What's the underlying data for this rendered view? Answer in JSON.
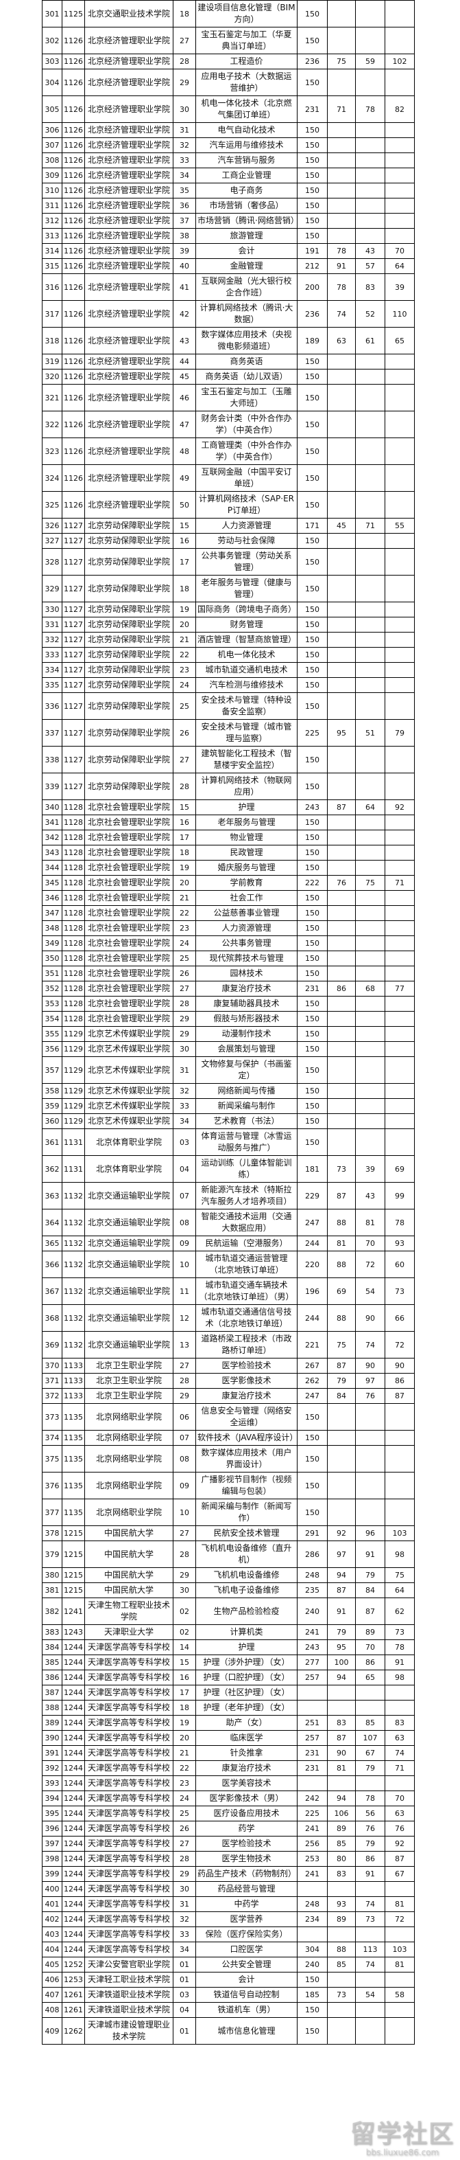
{
  "watermark": {
    "logo_text": "留学社区",
    "url": "bbs.liuxue86.com"
  },
  "table": {
    "rows": [
      [
        "301",
        "1125",
        "北京交通职业技术学院",
        "18",
        "建设项目信息化管理（BIM方向）",
        "150",
        "",
        "",
        ""
      ],
      [
        "302",
        "1126",
        "北京经济管理职业学院",
        "27",
        "宝玉石鉴定与加工（华夏典当订单班）",
        "150",
        "",
        "",
        ""
      ],
      [
        "303",
        "1126",
        "北京经济管理职业学院",
        "28",
        "工程造价",
        "236",
        "75",
        "59",
        "102"
      ],
      [
        "304",
        "1126",
        "北京经济管理职业学院",
        "29",
        "应用电子技术（大数据运营维护）",
        "150",
        "",
        "",
        ""
      ],
      [
        "305",
        "1126",
        "北京经济管理职业学院",
        "30",
        "机电一体化技术（北京燃气集团订单班）",
        "231",
        "71",
        "78",
        "82"
      ],
      [
        "306",
        "1126",
        "北京经济管理职业学院",
        "31",
        "电气自动化技术",
        "150",
        "",
        "",
        ""
      ],
      [
        "307",
        "1126",
        "北京经济管理职业学院",
        "32",
        "汽车运用与维修技术",
        "150",
        "",
        "",
        ""
      ],
      [
        "308",
        "1126",
        "北京经济管理职业学院",
        "33",
        "汽车营销与服务",
        "150",
        "",
        "",
        ""
      ],
      [
        "309",
        "1126",
        "北京经济管理职业学院",
        "34",
        "工商企业管理",
        "150",
        "",
        "",
        ""
      ],
      [
        "310",
        "1126",
        "北京经济管理职业学院",
        "35",
        "电子商务",
        "150",
        "",
        "",
        ""
      ],
      [
        "311",
        "1126",
        "北京经济管理职业学院",
        "36",
        "市场营销（奢侈品）",
        "150",
        "",
        "",
        ""
      ],
      [
        "312",
        "1126",
        "北京经济管理职业学院",
        "37",
        "市场营销（腾讯·网络营销）",
        "150",
        "",
        "",
        ""
      ],
      [
        "313",
        "1126",
        "北京经济管理职业学院",
        "38",
        "旅游管理",
        "150",
        "",
        "",
        ""
      ],
      [
        "314",
        "1126",
        "北京经济管理职业学院",
        "39",
        "会计",
        "191",
        "78",
        "43",
        "70"
      ],
      [
        "315",
        "1126",
        "北京经济管理职业学院",
        "40",
        "金融管理",
        "212",
        "91",
        "57",
        "64"
      ],
      [
        "316",
        "1126",
        "北京经济管理职业学院",
        "41",
        "互联网金融（光大银行校企合作班）",
        "200",
        "78",
        "83",
        "39"
      ],
      [
        "317",
        "1126",
        "北京经济管理职业学院",
        "42",
        "计算机网络技术（腾讯·大数据）",
        "236",
        "74",
        "52",
        "110"
      ],
      [
        "318",
        "1126",
        "北京经济管理职业学院",
        "43",
        "数字媒体应用技术（央视微电影频道班）",
        "189",
        "63",
        "61",
        "65"
      ],
      [
        "319",
        "1126",
        "北京经济管理职业学院",
        "44",
        "商务英语",
        "150",
        "",
        "",
        ""
      ],
      [
        "320",
        "1126",
        "北京经济管理职业学院",
        "45",
        "商务英语（幼儿双语）",
        "150",
        "",
        "",
        ""
      ],
      [
        "321",
        "1126",
        "北京经济管理职业学院",
        "46",
        "宝玉石鉴定与加工（玉雕大师班）",
        "150",
        "",
        "",
        ""
      ],
      [
        "322",
        "1126",
        "北京经济管理职业学院",
        "47",
        "财务会计类（中外合作办学）（中英合作）",
        "150",
        "",
        "",
        ""
      ],
      [
        "323",
        "1126",
        "北京经济管理职业学院",
        "48",
        "工商管理类（中外合作办学）（中英合作）",
        "150",
        "",
        "",
        ""
      ],
      [
        "324",
        "1126",
        "北京经济管理职业学院",
        "49",
        "互联网金融（中国平安订单班）",
        "150",
        "",
        "",
        ""
      ],
      [
        "325",
        "1126",
        "北京经济管理职业学院",
        "50",
        "计算机网络技术（SAP·ERP订单班）",
        "150",
        "",
        "",
        ""
      ],
      [
        "326",
        "1127",
        "北京劳动保障职业学院",
        "15",
        "人力资源管理",
        "171",
        "45",
        "71",
        "55"
      ],
      [
        "327",
        "1127",
        "北京劳动保障职业学院",
        "16",
        "劳动与社会保障",
        "150",
        "",
        "",
        ""
      ],
      [
        "328",
        "1127",
        "北京劳动保障职业学院",
        "17",
        "公共事务管理（劳动关系管理）",
        "150",
        "",
        "",
        ""
      ],
      [
        "329",
        "1127",
        "北京劳动保障职业学院",
        "18",
        "老年服务与管理（健康与管理）",
        "150",
        "",
        "",
        ""
      ],
      [
        "330",
        "1127",
        "北京劳动保障职业学院",
        "19",
        "国际商务（跨境电子商务）",
        "150",
        "",
        "",
        ""
      ],
      [
        "331",
        "1127",
        "北京劳动保障职业学院",
        "20",
        "财务管理",
        "150",
        "",
        "",
        ""
      ],
      [
        "332",
        "1127",
        "北京劳动保障职业学院",
        "21",
        "酒店管理（智慧商旅管理）",
        "150",
        "",
        "",
        ""
      ],
      [
        "333",
        "1127",
        "北京劳动保障职业学院",
        "22",
        "机电一体化技术",
        "150",
        "",
        "",
        ""
      ],
      [
        "334",
        "1127",
        "北京劳动保障职业学院",
        "23",
        "城市轨道交通机电技术",
        "150",
        "",
        "",
        ""
      ],
      [
        "335",
        "1127",
        "北京劳动保障职业学院",
        "24",
        "汽车检测与维修技术",
        "150",
        "",
        "",
        ""
      ],
      [
        "336",
        "1127",
        "北京劳动保障职业学院",
        "25",
        "安全技术与管理（特种设备安全监察）",
        "150",
        "",
        "",
        ""
      ],
      [
        "337",
        "1127",
        "北京劳动保障职业学院",
        "26",
        "安全技术与管理（城市管理与监察）",
        "225",
        "95",
        "51",
        "79"
      ],
      [
        "338",
        "1127",
        "北京劳动保障职业学院",
        "27",
        "建筑智能化工程技术（智慧楼宇安全监控）",
        "150",
        "",
        "",
        ""
      ],
      [
        "339",
        "1127",
        "北京劳动保障职业学院",
        "28",
        "计算机网络技术（物联网应用）",
        "150",
        "",
        "",
        ""
      ],
      [
        "340",
        "1128",
        "北京社会管理职业学院",
        "15",
        "护理",
        "243",
        "87",
        "64",
        "92"
      ],
      [
        "341",
        "1128",
        "北京社会管理职业学院",
        "16",
        "老年服务与管理",
        "150",
        "",
        "",
        ""
      ],
      [
        "342",
        "1128",
        "北京社会管理职业学院",
        "17",
        "物业管理",
        "150",
        "",
        "",
        ""
      ],
      [
        "343",
        "1128",
        "北京社会管理职业学院",
        "18",
        "民政管理",
        "150",
        "",
        "",
        ""
      ],
      [
        "344",
        "1128",
        "北京社会管理职业学院",
        "19",
        "婚庆服务与管理",
        "150",
        "",
        "",
        ""
      ],
      [
        "345",
        "1128",
        "北京社会管理职业学院",
        "20",
        "学前教育",
        "222",
        "76",
        "75",
        "71"
      ],
      [
        "346",
        "1128",
        "北京社会管理职业学院",
        "21",
        "社会工作",
        "150",
        "",
        "",
        ""
      ],
      [
        "347",
        "1128",
        "北京社会管理职业学院",
        "22",
        "公益慈善事业管理",
        "150",
        "",
        "",
        ""
      ],
      [
        "348",
        "1128",
        "北京社会管理职业学院",
        "23",
        "人力资源管理",
        "150",
        "",
        "",
        ""
      ],
      [
        "349",
        "1128",
        "北京社会管理职业学院",
        "24",
        "公共事务管理",
        "150",
        "",
        "",
        ""
      ],
      [
        "350",
        "1128",
        "北京社会管理职业学院",
        "25",
        "现代殡葬技术与管理",
        "150",
        "",
        "",
        ""
      ],
      [
        "351",
        "1128",
        "北京社会管理职业学院",
        "26",
        "园林技术",
        "150",
        "",
        "",
        ""
      ],
      [
        "352",
        "1128",
        "北京社会管理职业学院",
        "27",
        "康复治疗技术",
        "231",
        "86",
        "68",
        "77"
      ],
      [
        "353",
        "1128",
        "北京社会管理职业学院",
        "28",
        "康复辅助器具技术",
        "150",
        "",
        "",
        ""
      ],
      [
        "354",
        "1128",
        "北京社会管理职业学院",
        "29",
        "假肢与矫形器技术",
        "150",
        "",
        "",
        ""
      ],
      [
        "355",
        "1129",
        "北京艺术传媒职业学院",
        "29",
        "动漫制作技术",
        "150",
        "",
        "",
        ""
      ],
      [
        "356",
        "1129",
        "北京艺术传媒职业学院",
        "30",
        "会展策划与管理",
        "150",
        "",
        "",
        ""
      ],
      [
        "357",
        "1129",
        "北京艺术传媒职业学院",
        "31",
        "文物修复与保护（书画鉴定）",
        "150",
        "",
        "",
        ""
      ],
      [
        "358",
        "1129",
        "北京艺术传媒职业学院",
        "32",
        "网络新闻与传播",
        "150",
        "",
        "",
        ""
      ],
      [
        "359",
        "1129",
        "北京艺术传媒职业学院",
        "33",
        "新闻采编与制作",
        "150",
        "",
        "",
        ""
      ],
      [
        "360",
        "1129",
        "北京艺术传媒职业学院",
        "34",
        "艺术教育（书法）",
        "150",
        "",
        "",
        ""
      ],
      [
        "361",
        "1131",
        "北京体育职业学院",
        "03",
        "体育运营与管理（冰雪运动服务与推广）",
        "150",
        "",
        "",
        ""
      ],
      [
        "362",
        "1131",
        "北京体育职业学院",
        "04",
        "运动训练（儿童体智能训练）",
        "181",
        "73",
        "39",
        "69"
      ],
      [
        "363",
        "1132",
        "北京交通运输职业学院",
        "07",
        "新能源汽车技术（特斯拉汽车服务人才培养项目）",
        "229",
        "87",
        "43",
        "99"
      ],
      [
        "364",
        "1132",
        "北京交通运输职业学院",
        "08",
        "智能交通技术运用（交通大数据应用）",
        "247",
        "88",
        "81",
        "78"
      ],
      [
        "365",
        "1132",
        "北京交通运输职业学院",
        "09",
        "民航运输（空港服务）",
        "244",
        "81",
        "70",
        "93"
      ],
      [
        "366",
        "1132",
        "北京交通运输职业学院",
        "10",
        "城市轨道交通运营管理（北京地铁订单班）",
        "220",
        "88",
        "72",
        "60"
      ],
      [
        "367",
        "1132",
        "北京交通运输职业学院",
        "11",
        "城市轨道交通车辆技术（北京地铁订单班）（男）",
        "196",
        "69",
        "54",
        "73"
      ],
      [
        "368",
        "1132",
        "北京交通运输职业学院",
        "12",
        "城市轨道交通通信信号技术（北京地铁订单班）",
        "244",
        "88",
        "90",
        "66"
      ],
      [
        "369",
        "1132",
        "北京交通运输职业学院",
        "13",
        "道路桥梁工程技术（市政路桥订单班）",
        "221",
        "75",
        "74",
        "72"
      ],
      [
        "370",
        "1133",
        "北京卫生职业学院",
        "27",
        "医学检验技术",
        "267",
        "87",
        "90",
        "90"
      ],
      [
        "371",
        "1133",
        "北京卫生职业学院",
        "28",
        "医学影像技术",
        "262",
        "79",
        "97",
        "86"
      ],
      [
        "372",
        "1133",
        "北京卫生职业学院",
        "29",
        "康复治疗技术",
        "247",
        "84",
        "76",
        "87"
      ],
      [
        "373",
        "1135",
        "北京网络职业学院",
        "06",
        "信息安全与管理（网络安全运维）",
        "150",
        "",
        "",
        ""
      ],
      [
        "374",
        "1135",
        "北京网络职业学院",
        "07",
        "软件技术（JAVA程序设计）",
        "150",
        "",
        "",
        ""
      ],
      [
        "375",
        "1135",
        "北京网络职业学院",
        "08",
        "数字媒体应用技术（用户界面设计）",
        "150",
        "",
        "",
        ""
      ],
      [
        "376",
        "1135",
        "北京网络职业学院",
        "09",
        "广播影视节目制作（视频编辑与包装）",
        "150",
        "",
        "",
        ""
      ],
      [
        "377",
        "1135",
        "北京网络职业学院",
        "10",
        "新闻采编与制作（新闻写作）",
        "150",
        "",
        "",
        ""
      ],
      [
        "378",
        "1215",
        "中国民航大学",
        "27",
        "民航安全技术管理",
        "291",
        "92",
        "96",
        "103"
      ],
      [
        "379",
        "1215",
        "中国民航大学",
        "28",
        "飞机机电设备维修（直升机）",
        "286",
        "97",
        "91",
        "98"
      ],
      [
        "380",
        "1215",
        "中国民航大学",
        "29",
        "飞机机电设备维修",
        "248",
        "94",
        "79",
        "75"
      ],
      [
        "381",
        "1215",
        "中国民航大学",
        "30",
        "飞机电子设备维修",
        "235",
        "87",
        "84",
        "64"
      ],
      [
        "382",
        "1241",
        "天津生物工程职业技术学院",
        "02",
        "生物产品检验检疫",
        "240",
        "91",
        "87",
        "62"
      ],
      [
        "383",
        "1243",
        "天津职业大学",
        "02",
        "计算机类",
        "241",
        "79",
        "89",
        "73"
      ],
      [
        "384",
        "1244",
        "天津医学高等专科学校",
        "14",
        "护理",
        "243",
        "95",
        "70",
        "78"
      ],
      [
        "385",
        "1244",
        "天津医学高等专科学校",
        "15",
        "护理（涉外护理）（女）",
        "277",
        "100",
        "86",
        "91"
      ],
      [
        "386",
        "1244",
        "天津医学高等专科学校",
        "16",
        "护理（口腔护理）（女）",
        "257",
        "94",
        "65",
        "98"
      ],
      [
        "387",
        "1244",
        "天津医学高等专科学校",
        "17",
        "护理（社区护理）（女）",
        "",
        "",
        "",
        ""
      ],
      [
        "388",
        "1244",
        "天津医学高等专科学校",
        "18",
        "护理（老年护理）（女）",
        "",
        "",
        "",
        ""
      ],
      [
        "389",
        "1244",
        "天津医学高等专科学校",
        "19",
        "助产（女）",
        "251",
        "83",
        "85",
        "83"
      ],
      [
        "390",
        "1244",
        "天津医学高等专科学校",
        "20",
        "临床医学",
        "257",
        "87",
        "107",
        "63"
      ],
      [
        "391",
        "1244",
        "天津医学高等专科学校",
        "21",
        "针灸推拿",
        "231",
        "90",
        "67",
        "74"
      ],
      [
        "392",
        "1244",
        "天津医学高等专科学校",
        "22",
        "康复治疗技术",
        "231",
        "81",
        "79",
        "71"
      ],
      [
        "393",
        "1244",
        "天津医学高等专科学校",
        "23",
        "医学美容技术",
        "",
        "",
        "",
        ""
      ],
      [
        "394",
        "1244",
        "天津医学高等专科学校",
        "24",
        "医学影像技术（男）",
        "242",
        "94",
        "78",
        "70"
      ],
      [
        "395",
        "1244",
        "天津医学高等专科学校",
        "25",
        "医疗设备应用技术",
        "225",
        "106",
        "56",
        "63"
      ],
      [
        "396",
        "1244",
        "天津医学高等专科学校",
        "26",
        "药学",
        "241",
        "89",
        "76",
        "76"
      ],
      [
        "397",
        "1244",
        "天津医学高等专科学校",
        "27",
        "医学检验技术",
        "256",
        "85",
        "79",
        "92"
      ],
      [
        "398",
        "1244",
        "天津医学高等专科学校",
        "28",
        "医学生物技术",
        "253",
        "80",
        "86",
        "87"
      ],
      [
        "399",
        "1244",
        "天津医学高等专科学校",
        "29",
        "药品生产技术（药物制剂）",
        "241",
        "83",
        "91",
        "67"
      ],
      [
        "400",
        "1244",
        "天津医学高等专科学校",
        "30",
        "药品经营与管理",
        "",
        "",
        "",
        ""
      ],
      [
        "401",
        "1244",
        "天津医学高等专科学校",
        "31",
        "中药学",
        "248",
        "93",
        "74",
        "81"
      ],
      [
        "402",
        "1244",
        "天津医学高等专科学校",
        "32",
        "医学营养",
        "234",
        "89",
        "73",
        "72"
      ],
      [
        "403",
        "1244",
        "天津医学高等专科学校",
        "33",
        "保险（医疗保险实务）",
        "",
        "",
        "",
        ""
      ],
      [
        "404",
        "1244",
        "天津医学高等专科学校",
        "34",
        "口腔医学",
        "304",
        "88",
        "113",
        "103"
      ],
      [
        "405",
        "1252",
        "天津公安警官职业学院",
        "01",
        "公共安全管理",
        "240",
        "85",
        "74",
        "81"
      ],
      [
        "406",
        "1253",
        "天津轻工职业技术学院",
        "01",
        "会计",
        "150",
        "",
        "",
        ""
      ],
      [
        "407",
        "1261",
        "天津铁道职业技术学院",
        "03",
        "铁道信号自动控制",
        "185",
        "73",
        "54",
        "58"
      ],
      [
        "408",
        "1261",
        "天津铁道职业技术学院",
        "04",
        "铁道机车（男）",
        "150",
        "",
        "",
        ""
      ],
      [
        "409",
        "1262",
        "天津城市建设管理职业技术学院",
        "01",
        "城市信息化管理",
        "150",
        "",
        "",
        ""
      ]
    ]
  }
}
